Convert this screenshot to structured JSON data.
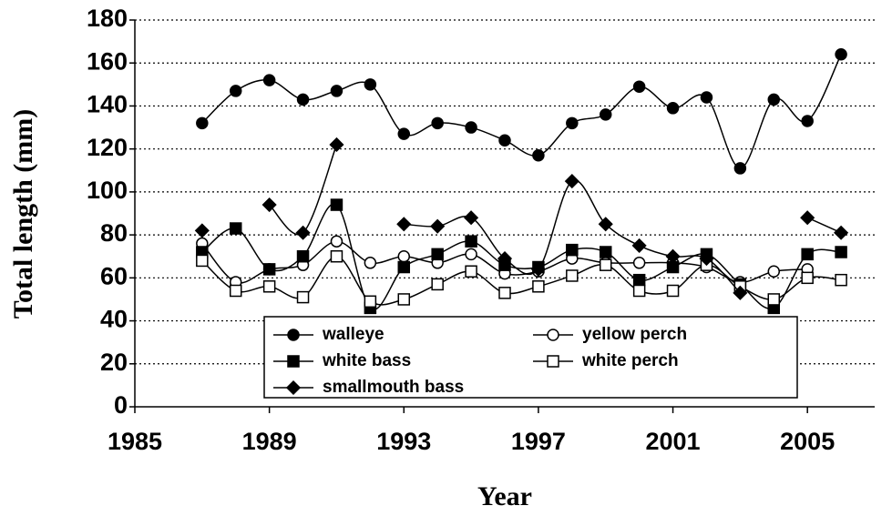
{
  "chart_data": {
    "type": "line",
    "x_label": "Year",
    "y_label": "Total length (mm)",
    "x": [
      1987,
      1988,
      1989,
      1990,
      1991,
      1992,
      1993,
      1994,
      1995,
      1996,
      1997,
      1998,
      1999,
      2000,
      2001,
      2002,
      2003,
      2004,
      2005,
      2006
    ],
    "xlim": [
      1985,
      2007
    ],
    "xticks": [
      1985,
      1989,
      1993,
      1997,
      2001,
      2005
    ],
    "ylim": [
      0,
      180
    ],
    "yticks": [
      0,
      20,
      40,
      60,
      80,
      100,
      120,
      140,
      160,
      180
    ],
    "grid": true,
    "series": [
      {
        "name": "walleye",
        "color": "#000000",
        "marker": "circle",
        "marker_fill": "#000000",
        "values": [
          132,
          147,
          152,
          143,
          147,
          150,
          127,
          132,
          130,
          124,
          117,
          132,
          136,
          149,
          139,
          144,
          111,
          143,
          133,
          164
        ]
      },
      {
        "name": "yellow perch",
        "color": "#000000",
        "marker": "circle",
        "marker_fill": "#ffffff",
        "values": [
          76,
          58,
          64,
          66,
          77,
          67,
          70,
          67,
          71,
          62,
          63,
          69,
          67,
          67,
          67,
          65,
          58,
          63,
          64,
          null
        ]
      },
      {
        "name": "white bass",
        "color": "#000000",
        "marker": "square",
        "marker_fill": "#000000",
        "values": [
          72,
          83,
          64,
          70,
          94,
          46,
          65,
          71,
          77,
          66,
          65,
          73,
          72,
          59,
          65,
          71,
          57,
          46,
          71,
          72
        ]
      },
      {
        "name": "white perch",
        "color": "#000000",
        "marker": "square",
        "marker_fill": "#ffffff",
        "values": [
          68,
          54,
          56,
          51,
          70,
          49,
          50,
          57,
          63,
          53,
          56,
          61,
          66,
          54,
          54,
          66,
          56,
          50,
          60,
          59
        ]
      },
      {
        "name": "smallmouth bass",
        "color": "#000000",
        "marker": "diamond",
        "marker_fill": "#000000",
        "values": [
          82,
          null,
          94,
          81,
          122,
          null,
          85,
          84,
          88,
          69,
          64,
          105,
          85,
          75,
          70,
          69,
          53,
          null,
          88,
          81
        ]
      }
    ]
  }
}
